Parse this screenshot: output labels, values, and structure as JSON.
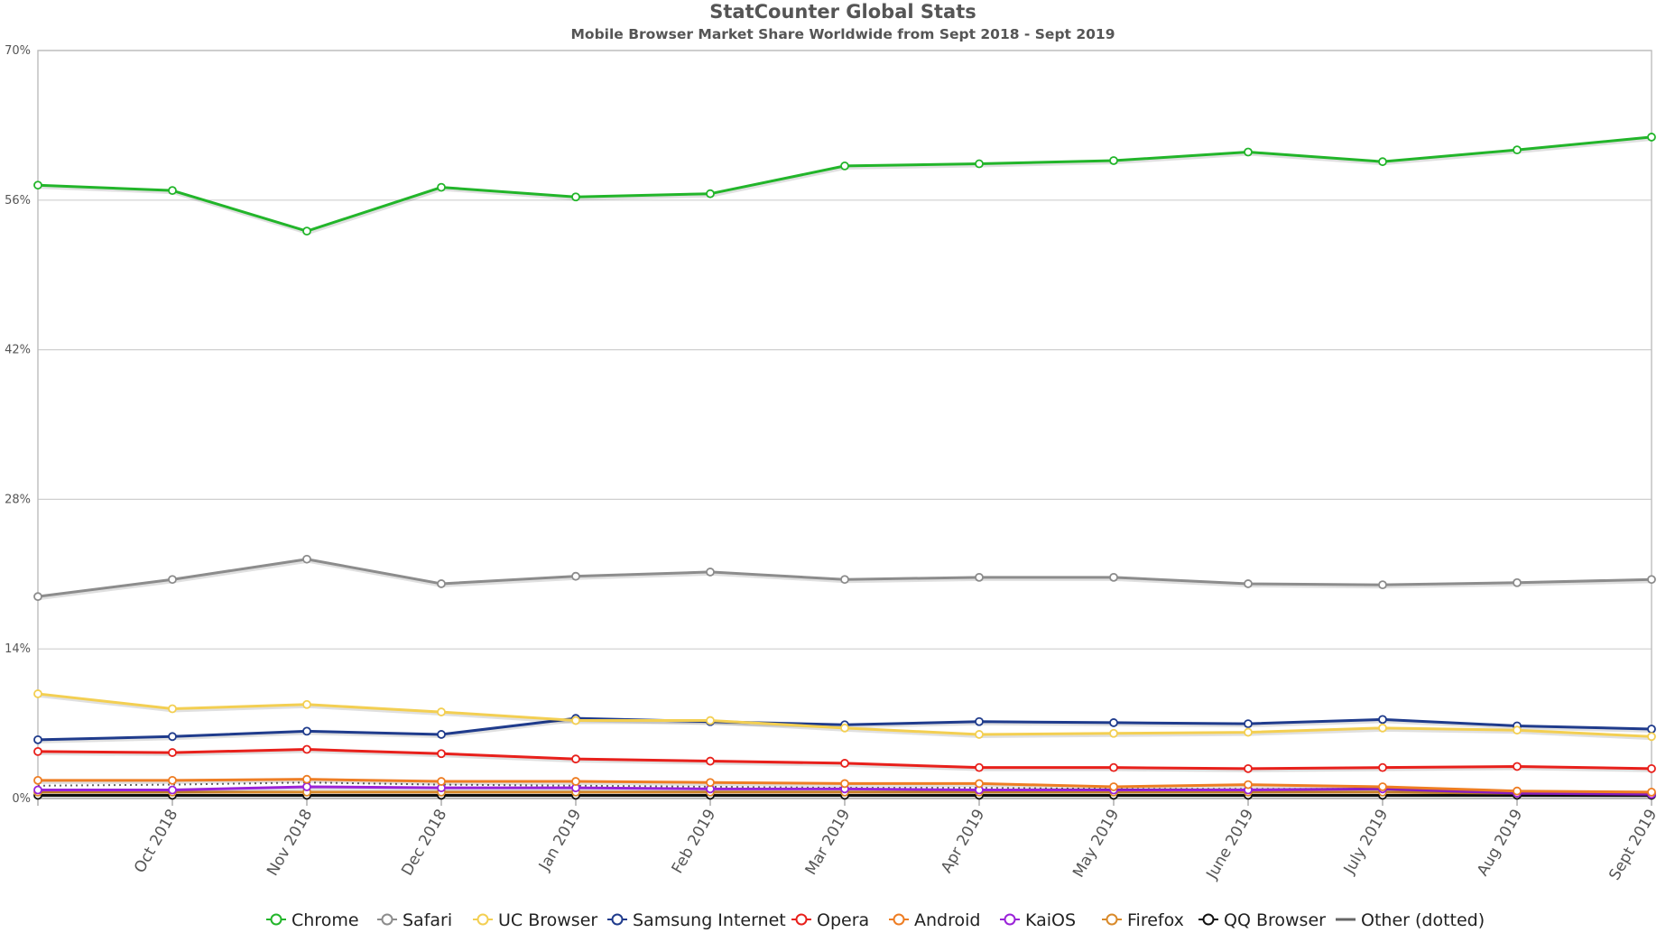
{
  "chart_data": {
    "type": "line",
    "title": "StatCounter Global Stats",
    "subtitle": "Mobile Browser Market Share Worldwide from Sept 2018 - Sept 2019",
    "xlabel": "",
    "ylabel": "",
    "ylim": [
      0,
      70
    ],
    "yticks": [
      0,
      14,
      28,
      42,
      56,
      70
    ],
    "ytick_labels": [
      "0%",
      "14%",
      "28%",
      "42%",
      "56%",
      "70%"
    ],
    "x": [
      "Sept 2018",
      "Oct 2018",
      "Nov 2018",
      "Dec 2018",
      "Jan 2019",
      "Feb 2019",
      "Mar 2019",
      "Apr 2019",
      "May 2019",
      "June 2019",
      "July 2019",
      "Aug 2019",
      "Sept 2019"
    ],
    "x_tick_labels": [
      "",
      "Oct 2018",
      "Nov 2018",
      "Dec 2018",
      "Jan 2019",
      "Feb 2019",
      "Mar 2019",
      "Apr 2019",
      "May 2019",
      "June 2019",
      "July 2019",
      "Aug 2019",
      "Sept 2019"
    ],
    "grid": true,
    "legend_position": "bottom",
    "series": [
      {
        "name": "Chrome",
        "color": "#22b52a",
        "values": [
          57.4,
          56.9,
          53.1,
          57.2,
          56.3,
          56.6,
          59.2,
          59.4,
          59.7,
          60.5,
          59.6,
          60.7,
          61.9
        ]
      },
      {
        "name": "Safari",
        "color": "#8c8c8c",
        "values": [
          18.9,
          20.5,
          22.4,
          20.1,
          20.8,
          21.2,
          20.5,
          20.7,
          20.7,
          20.1,
          20.0,
          20.2,
          20.5
        ]
      },
      {
        "name": "UC Browser",
        "color": "#f3cf52",
        "values": [
          9.8,
          8.4,
          8.8,
          8.1,
          7.3,
          7.3,
          6.6,
          6.0,
          6.1,
          6.2,
          6.6,
          6.4,
          5.8
        ]
      },
      {
        "name": "Samsung Internet",
        "color": "#1f3b8c",
        "values": [
          5.5,
          5.8,
          6.3,
          6.0,
          7.5,
          7.2,
          6.9,
          7.2,
          7.1,
          7.0,
          7.4,
          6.8,
          6.5
        ]
      },
      {
        "name": "Opera",
        "color": "#e8201b",
        "values": [
          4.4,
          4.3,
          4.6,
          4.2,
          3.7,
          3.5,
          3.3,
          2.9,
          2.9,
          2.8,
          2.9,
          3.0,
          2.8
        ]
      },
      {
        "name": "Android",
        "color": "#ee7d23",
        "values": [
          1.7,
          1.7,
          1.8,
          1.6,
          1.6,
          1.5,
          1.4,
          1.4,
          1.1,
          1.3,
          1.1,
          0.7,
          0.6
        ]
      },
      {
        "name": "KaiOS",
        "color": "#9a22d8",
        "values": [
          0.8,
          0.8,
          1.1,
          1.0,
          1.0,
          0.9,
          0.9,
          0.8,
          0.8,
          0.8,
          0.9,
          0.5,
          0.4
        ]
      },
      {
        "name": "Firefox",
        "color": "#d98a2a",
        "values": [
          0.6,
          0.6,
          0.6,
          0.6,
          0.6,
          0.6,
          0.6,
          0.6,
          0.6,
          0.6,
          0.6,
          0.5,
          0.5
        ]
      },
      {
        "name": "QQ Browser",
        "color": "#111111",
        "values": [
          0.3,
          0.3,
          0.3,
          0.3,
          0.3,
          0.3,
          0.3,
          0.3,
          0.3,
          0.3,
          0.3,
          0.3,
          0.3
        ]
      },
      {
        "name": "Other (dotted)",
        "color": "#666666",
        "dotted": true,
        "values": [
          1.2,
          1.3,
          1.5,
          1.3,
          1.2,
          1.1,
          1.0,
          1.0,
          0.9,
          0.9,
          0.9,
          0.6,
          0.5
        ]
      }
    ]
  }
}
